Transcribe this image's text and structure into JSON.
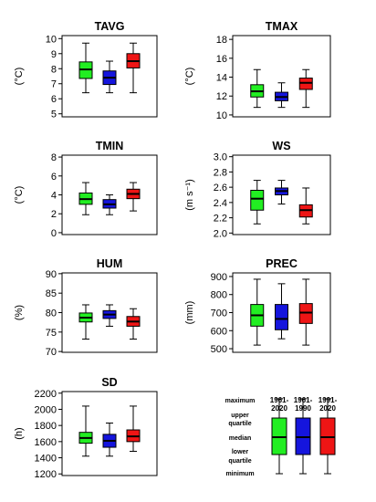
{
  "colors": {
    "p1": "#22ee22",
    "p2": "#1515dd",
    "p3": "#ee1515",
    "frame": "#000000"
  },
  "chart_data": [
    {
      "type": "boxplot",
      "title": "TAVG",
      "ylabel": "(°C)",
      "ylim": [
        4.8,
        10.2
      ],
      "yticks": [
        "5",
        "6",
        "7",
        "8",
        "9",
        "10"
      ],
      "categories": [
        "1961-2020",
        "1961-1990",
        "1991-2020"
      ],
      "series": [
        {
          "min": 6.4,
          "q1": 7.35,
          "median": 7.95,
          "q3": 8.45,
          "max": 9.7
        },
        {
          "min": 6.4,
          "q1": 6.95,
          "median": 7.4,
          "q3": 7.85,
          "max": 8.5
        },
        {
          "min": 6.4,
          "q1": 8.05,
          "median": 8.5,
          "q3": 9.0,
          "max": 9.7
        }
      ]
    },
    {
      "type": "boxplot",
      "title": "TMAX",
      "ylabel": "(°C)",
      "ylim": [
        9.8,
        18.4
      ],
      "yticks": [
        "10",
        "12",
        "14",
        "16",
        "18"
      ],
      "categories": [
        "1961-2020",
        "1961-1990",
        "1991-2020"
      ],
      "series": [
        {
          "min": 10.8,
          "q1": 11.9,
          "median": 12.5,
          "q3": 13.2,
          "max": 14.8
        },
        {
          "min": 10.8,
          "q1": 11.5,
          "median": 11.9,
          "q3": 12.4,
          "max": 13.4
        },
        {
          "min": 10.8,
          "q1": 12.7,
          "median": 13.4,
          "q3": 13.9,
          "max": 14.8
        }
      ]
    },
    {
      "type": "boxplot",
      "title": "TMIN",
      "ylabel": "(°C)",
      "ylim": [
        -0.2,
        8.2
      ],
      "yticks": [
        "0",
        "2",
        "4",
        "6",
        "8"
      ],
      "categories": [
        "1961-2020",
        "1961-1990",
        "1991-2020"
      ],
      "series": [
        {
          "min": 1.9,
          "q1": 3.0,
          "median": 3.55,
          "q3": 4.2,
          "max": 5.3
        },
        {
          "min": 1.9,
          "q1": 2.6,
          "median": 3.0,
          "q3": 3.5,
          "max": 4.0
        },
        {
          "min": 2.3,
          "q1": 3.6,
          "median": 4.1,
          "q3": 4.6,
          "max": 5.3
        }
      ]
    },
    {
      "type": "boxplot",
      "title": "WS",
      "ylabel": "(m s⁻¹)",
      "ylim": [
        1.98,
        3.02
      ],
      "yticks": [
        "2.0",
        "2.2",
        "2.4",
        "2.6",
        "2.8",
        "3.0"
      ],
      "categories": [
        "1961-2020",
        "1961-1990",
        "1991-2020"
      ],
      "series": [
        {
          "min": 2.12,
          "q1": 2.3,
          "median": 2.45,
          "q3": 2.56,
          "max": 2.69
        },
        {
          "min": 2.38,
          "q1": 2.5,
          "median": 2.55,
          "q3": 2.59,
          "max": 2.69
        },
        {
          "min": 2.12,
          "q1": 2.21,
          "median": 2.3,
          "q3": 2.37,
          "max": 2.59
        }
      ]
    },
    {
      "type": "boxplot",
      "title": "HUM",
      "ylabel": "(%)",
      "ylim": [
        69.8,
        90.2
      ],
      "yticks": [
        "70",
        "75",
        "80",
        "85",
        "90"
      ],
      "categories": [
        "1961-2020",
        "1961-1990",
        "1991-2020"
      ],
      "series": [
        {
          "min": 73.2,
          "q1": 77.6,
          "median": 78.7,
          "q3": 79.9,
          "max": 82.0
        },
        {
          "min": 76.5,
          "q1": 78.5,
          "median": 79.5,
          "q3": 80.5,
          "max": 82.0
        },
        {
          "min": 73.2,
          "q1": 76.5,
          "median": 77.7,
          "q3": 79.0,
          "max": 81.0
        }
      ]
    },
    {
      "type": "boxplot",
      "title": "PREC",
      "ylabel": "(mm)",
      "ylim": [
        480,
        920
      ],
      "yticks": [
        "500",
        "600",
        "700",
        "800",
        "900"
      ],
      "categories": [
        "1961-2020",
        "1961-1990",
        "1991-2020"
      ],
      "series": [
        {
          "min": 520,
          "q1": 625,
          "median": 685,
          "q3": 745,
          "max": 885
        },
        {
          "min": 555,
          "q1": 605,
          "median": 665,
          "q3": 745,
          "max": 860
        },
        {
          "min": 520,
          "q1": 640,
          "median": 700,
          "q3": 750,
          "max": 885
        }
      ]
    },
    {
      "type": "boxplot",
      "title": "SD",
      "ylabel": "(h)",
      "ylim": [
        1180,
        2220
      ],
      "yticks": [
        "1200",
        "1400",
        "1600",
        "1800",
        "2000",
        "2200"
      ],
      "categories": [
        "1961-2020",
        "1961-1990",
        "1991-2020"
      ],
      "series": [
        {
          "min": 1420,
          "q1": 1580,
          "median": 1645,
          "q3": 1715,
          "max": 2040
        },
        {
          "min": 1420,
          "q1": 1530,
          "median": 1610,
          "q3": 1690,
          "max": 1830
        },
        {
          "min": 1480,
          "q1": 1600,
          "median": 1665,
          "q3": 1745,
          "max": 2040
        }
      ]
    }
  ],
  "legend": {
    "columns": [
      {
        "line1": "1961-",
        "line2": "2020"
      },
      {
        "line1": "1961-",
        "line2": "1990"
      },
      {
        "line1": "1991-",
        "line2": "2020"
      }
    ],
    "labels": {
      "maximum": "maximum",
      "upper_quartile_1": "upper",
      "upper_quartile_2": "quartile",
      "median": "median",
      "lower_quartile_1": "lower",
      "lower_quartile_2": "quartile",
      "minimum": "minimum"
    }
  }
}
